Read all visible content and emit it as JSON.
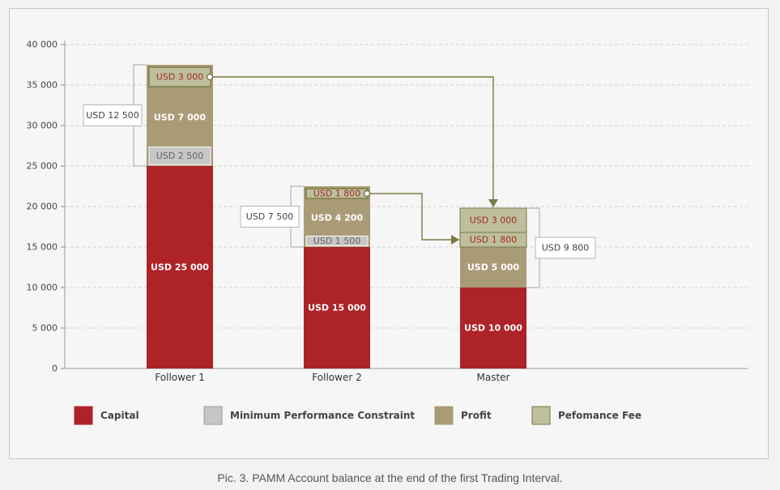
{
  "caption": "Pic. 3. PAMM Account balance at the end of the first Trading Interval.",
  "colors": {
    "capital": "#ad2328",
    "constraint": "#c6c6c4",
    "profit": "#aa9b77",
    "fee": "#bebf9c",
    "fee_border": "#7a7a45",
    "arrow": "#7a7a45",
    "bracket": "#b5b5b5",
    "grid": "#d4d4d4"
  },
  "chart_data": {
    "type": "bar",
    "stacked": true,
    "categories": [
      "Follower 1",
      "Follower 2",
      "Master"
    ],
    "ylim": [
      0,
      40000
    ],
    "yticks": [
      0,
      5000,
      10000,
      15000,
      20000,
      25000,
      30000,
      35000,
      40000
    ],
    "ytick_labels": [
      "0",
      "5 000",
      "10 000",
      "15 000",
      "20 000",
      "25 000",
      "30 000",
      "35 000",
      "40 000"
    ],
    "grid": true,
    "legend_position": "bottom",
    "series": [
      {
        "name": "Capital",
        "key": "capital",
        "values": [
          25000,
          15000,
          10000
        ],
        "labels": [
          "USD 25 000",
          "USD 15 000",
          "USD 10 000"
        ]
      },
      {
        "name": "Minimum Performance Constraint",
        "key": "constraint",
        "values": [
          2500,
          1500,
          0
        ],
        "labels": [
          "USD 2 500",
          "USD 1 500",
          ""
        ]
      },
      {
        "name": "Profit",
        "key": "profit",
        "values": [
          7000,
          4200,
          5000
        ],
        "labels": [
          "USD 7 000",
          "USD 4 200",
          "USD 5 000"
        ]
      },
      {
        "name": "Pefomance Fee",
        "key": "fee",
        "values": [
          3000,
          1800,
          4800
        ],
        "labels": [
          "USD 3 000",
          "USD 1 800",
          ""
        ]
      }
    ],
    "master_fee_parts": [
      {
        "value": 1800,
        "label": "USD 1 800"
      },
      {
        "value": 3000,
        "label": "USD 3 000"
      }
    ],
    "bracket_totals": [
      "USD 12 500",
      "USD 7 500",
      "USD 9 800"
    ]
  }
}
